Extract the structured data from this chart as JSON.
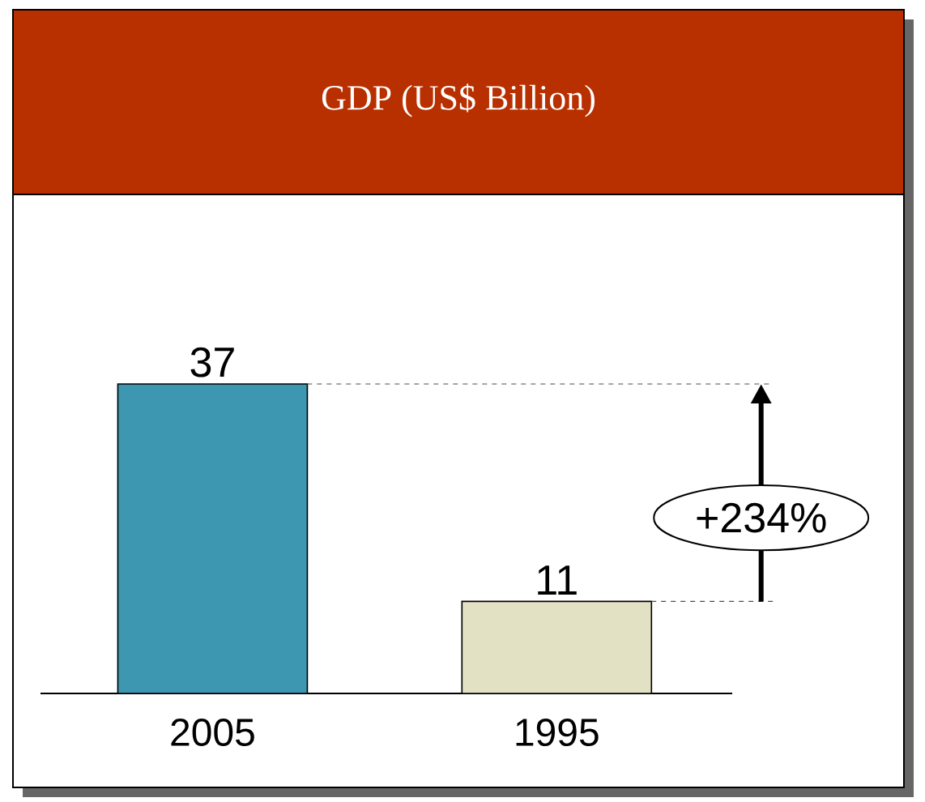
{
  "chart_data": {
    "type": "bar",
    "title": "GDP (US$ Billion)",
    "categories": [
      "2005",
      "1995"
    ],
    "values": [
      37,
      11
    ],
    "colors": [
      "#3d97b0",
      "#e3e1c3"
    ],
    "tick_labels": "x",
    "data_labels": true,
    "ref_lines": [
      {
        "axis": "y",
        "value": 37,
        "line_style": "dashed"
      },
      {
        "axis": "y",
        "value": 11,
        "line_style": "dashed"
      }
    ],
    "annotations": [
      "+234%"
    ]
  }
}
